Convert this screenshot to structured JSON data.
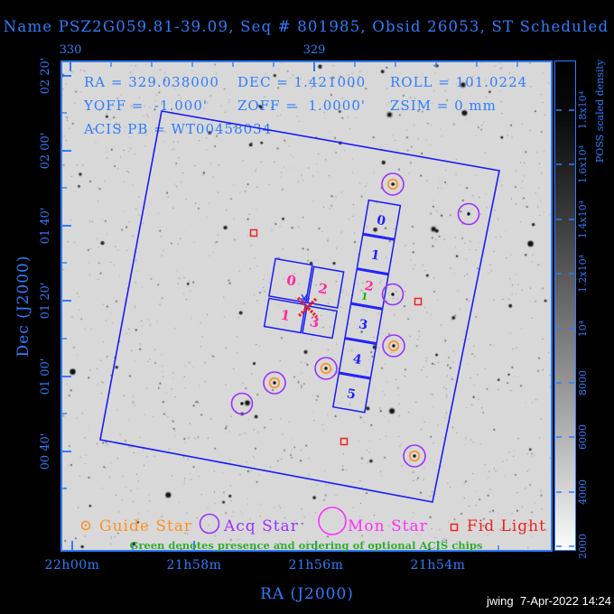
{
  "window_title": "Name PSZ2G059.81-39.09, Seq # 801985, Obsid 26053, ST Scheduled",
  "info": {
    "ra": "RA = 329.038000",
    "dec": "DEC = 1.421000",
    "roll": "ROLL = 101.0224",
    "yoff": "YOFF =  -1.000'",
    "zoff": "ZOFF =  1.0000'",
    "zsim": "ZSIM = 0 mm",
    "acis_pb": "ACIS PB = WT00458034"
  },
  "axes": {
    "x_label": "RA (J2000)",
    "y_label": "Dec (J2000)",
    "top_ticks": [
      "330",
      "329"
    ],
    "bottom_ticks": [
      "22h00m",
      "21h58m",
      "21h56m",
      "21h54m"
    ],
    "left_ticks": [
      "02 20'",
      "02 00'",
      "01 40'",
      "01 20'",
      "01 00'",
      "00 40'"
    ]
  },
  "colorbar": {
    "title": "POSS scaled density",
    "ticks": [
      "1.8x10⁴",
      "1.6x10⁴",
      "1.4x10⁴",
      "1.2x10⁴",
      "10⁴",
      "8000",
      "6000",
      "4000",
      "2000"
    ]
  },
  "detector": {
    "acis_i_chips": [
      "0",
      "2",
      "1",
      "3"
    ],
    "acis_s_chips": [
      "0",
      "1",
      "2",
      "3",
      "4",
      "5"
    ],
    "optional_chip_order": "1"
  },
  "legend": {
    "guide": "Guide Star",
    "acq": "Acq Star",
    "mon": "Mon Star",
    "fid": "Fid Light",
    "note": "Green denotes presence and ordering of optional ACIS chips"
  },
  "footer": {
    "signature": "jwing  7-Apr-2022 14:24"
  },
  "colors": {
    "text_blue": "#2f7dff",
    "fov_blue": "#1a1aff",
    "chip_label_magenta": "#ff2d9e",
    "optional_green": "#00b300",
    "guide_orange": "#ff9020",
    "acq_purple": "#9b30ff",
    "mon_magenta": "#ff2fff",
    "fid_red": "#ee2222",
    "note_green": "#2fae2f"
  }
}
